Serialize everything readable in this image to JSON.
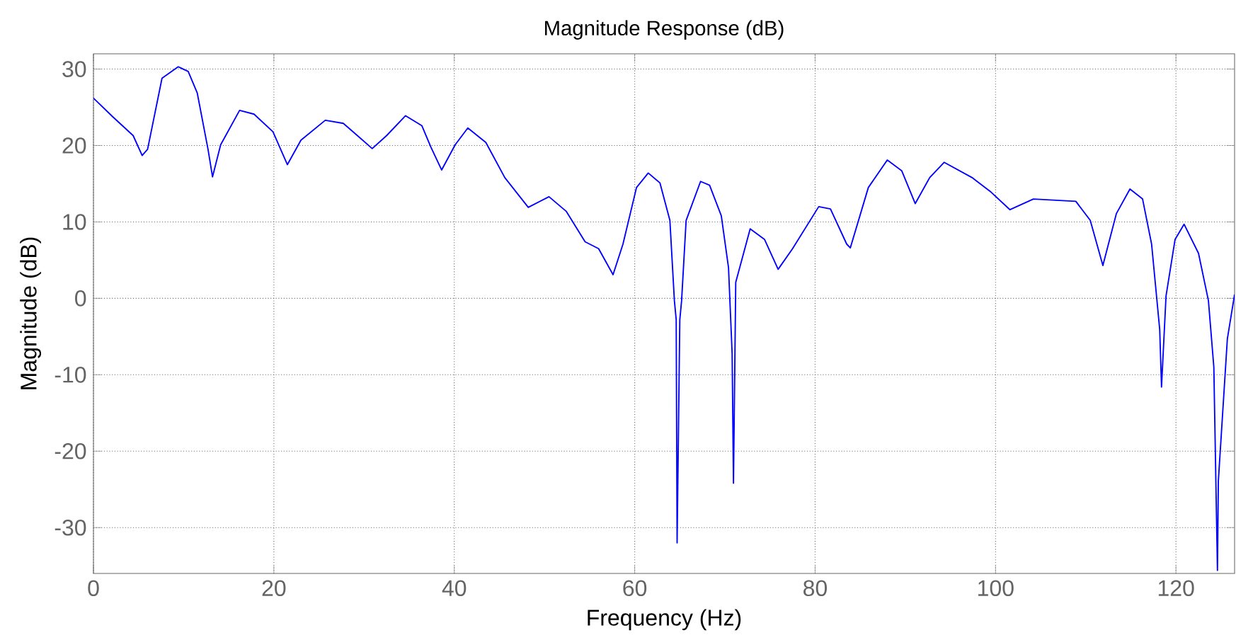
{
  "chart_data": {
    "type": "line",
    "title": "Magnitude Response (dB)",
    "xlabel": "Frequency (Hz)",
    "ylabel": "Magnitude (dB)",
    "x": [
      0,
      2.1,
      4.4,
      5.4,
      6.0,
      7.6,
      9.4,
      10.5,
      11.5,
      12.7,
      13.2,
      14.1,
      16.2,
      17.8,
      19.9,
      21.5,
      23.0,
      25.7,
      27.7,
      30.9,
      32.5,
      34.6,
      36.4,
      37.4,
      38.6,
      40.1,
      41.5,
      43.5,
      45.6,
      48.2,
      50.5,
      52.4,
      54.5,
      56.0,
      57.6,
      58.7,
      60.2,
      61.5,
      62.8,
      63.9,
      64.4,
      64.6,
      64.7,
      65.0,
      65.2,
      65.7,
      67.3,
      68.3,
      69.6,
      70.4,
      70.8,
      70.95,
      71.2,
      72.8,
      74.4,
      75.9,
      77.5,
      80.4,
      81.7,
      83.5,
      83.9,
      85.9,
      88.0,
      89.6,
      91.1,
      92.7,
      94.3,
      97.4,
      99.5,
      101.6,
      104.2,
      108.9,
      110.5,
      111.9,
      113.4,
      114.9,
      116.3,
      117.3,
      118.2,
      118.4,
      118.9,
      119.9,
      120.9,
      122.5,
      123.6,
      124.2,
      124.6,
      124.7,
      125.7,
      126.5
    ],
    "values": [
      26.2,
      23.8,
      21.3,
      18.7,
      19.5,
      28.8,
      30.3,
      29.7,
      26.9,
      19.5,
      15.9,
      20.1,
      24.6,
      24.1,
      21.8,
      17.5,
      20.7,
      23.3,
      22.9,
      19.6,
      21.3,
      23.9,
      22.6,
      19.8,
      16.8,
      20.1,
      22.3,
      20.4,
      15.8,
      11.9,
      13.3,
      11.4,
      7.4,
      6.5,
      3.1,
      7.1,
      14.5,
      16.4,
      15.1,
      10.2,
      -0.3,
      -2.8,
      -32.0,
      -2.8,
      -0.3,
      10.2,
      15.3,
      14.8,
      10.8,
      4.0,
      -7.2,
      -24.2,
      2.1,
      9.1,
      7.7,
      3.8,
      6.5,
      12.0,
      11.7,
      7.1,
      6.6,
      14.5,
      18.1,
      16.7,
      12.4,
      15.8,
      17.8,
      15.8,
      13.9,
      11.6,
      13.0,
      12.7,
      10.2,
      4.3,
      11.1,
      14.3,
      13.0,
      7.1,
      -4.1,
      -11.6,
      0.3,
      7.7,
      9.7,
      5.9,
      -0.3,
      -9.0,
      -35.6,
      -23.9,
      -5.3,
      0.5
    ],
    "color": "#0000ff",
    "marker": "none",
    "line_style": "solid",
    "xlim": [
      0,
      126.5
    ],
    "ylim": [
      -36,
      32
    ],
    "xticks": [
      0,
      20,
      40,
      60,
      80,
      100,
      120
    ],
    "yticks": [
      -30,
      -20,
      -10,
      0,
      10,
      20,
      30
    ],
    "grid": true
  }
}
